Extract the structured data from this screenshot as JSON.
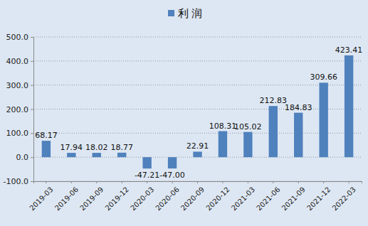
{
  "chart_data": {
    "type": "bar",
    "categories": [
      "2019-03",
      "2019-06",
      "2019-09",
      "2019-12",
      "2020-03",
      "2020-06",
      "2020-09",
      "2020-12",
      "2021-03",
      "2021-06",
      "2021-09",
      "2021-12",
      "2022-03"
    ],
    "series": [
      {
        "name": "利润",
        "color": "#4f81bd",
        "values": [
          68.17,
          17.94,
          18.02,
          18.77,
          -47.21,
          -47.0,
          22.91,
          108.31,
          105.02,
          212.83,
          184.83,
          309.66,
          423.41
        ],
        "value_labels": [
          "68.17",
          "17.94",
          "18.02",
          "18.77",
          "-47.21",
          "-47.00",
          "22.91",
          "108.31",
          "105.02",
          "212.83",
          "184.83",
          "309.66",
          "423.41"
        ]
      }
    ],
    "ylim": [
      -100,
      500
    ],
    "yticks": [
      {
        "value": -100,
        "label": "-100.0"
      },
      {
        "value": 0,
        "label": "0.0"
      },
      {
        "value": 100,
        "label": "100.0"
      },
      {
        "value": 200,
        "label": "200.0"
      },
      {
        "value": 300,
        "label": "300.0"
      },
      {
        "value": 400,
        "label": "400.0"
      },
      {
        "value": 500,
        "label": "500.0"
      }
    ],
    "grid": true,
    "data_labels": true,
    "legend": "top"
  }
}
